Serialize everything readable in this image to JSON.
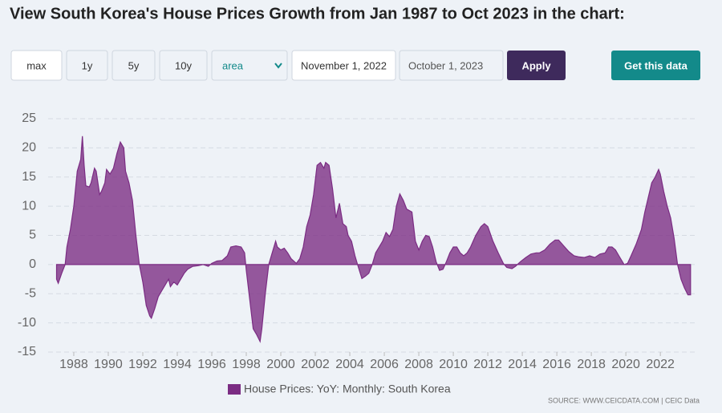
{
  "ui": {
    "buttons": [
      "max",
      "1y",
      "5y",
      "10y"
    ],
    "select": "area",
    "start_date": "November 1, 2022",
    "end_date": "October 1, 2023",
    "apply": "Apply",
    "get_data": "Get this data",
    "source": "SOURCE: WWW.CEICDATA.COM | CEIC Data"
  },
  "chart_data": {
    "type": "area",
    "title": "View South Korea's House Prices Growth from Jan 1987 to Oct 2023 in the chart:",
    "x": [
      1987.0,
      1987.1,
      1987.3,
      1987.5,
      1987.6,
      1987.8,
      1988.0,
      1988.2,
      1988.4,
      1988.5,
      1988.6,
      1988.7,
      1988.9,
      1989.0,
      1989.2,
      1989.3,
      1989.5,
      1989.6,
      1989.8,
      1989.9,
      1990.1,
      1990.3,
      1990.5,
      1990.7,
      1990.9,
      1991.0,
      1991.2,
      1991.4,
      1991.6,
      1991.8,
      1992.0,
      1992.2,
      1992.4,
      1992.5,
      1992.7,
      1992.9,
      1993.1,
      1993.3,
      1993.5,
      1993.6,
      1993.8,
      1994.0,
      1994.2,
      1994.4,
      1994.6,
      1994.9,
      1995.2,
      1995.5,
      1995.8,
      1996.0,
      1996.3,
      1996.6,
      1996.9,
      1997.1,
      1997.4,
      1997.7,
      1997.9,
      1998.0,
      1998.2,
      1998.4,
      1998.6,
      1998.8,
      1998.9,
      1999.1,
      1999.3,
      1999.5,
      1999.7,
      1999.8,
      2000.0,
      2000.2,
      2000.4,
      2000.6,
      2000.9,
      2001.1,
      2001.3,
      2001.5,
      2001.7,
      2001.9,
      2002.1,
      2002.3,
      2002.5,
      2002.6,
      2002.8,
      2003.0,
      2003.2,
      2003.4,
      2003.6,
      2003.8,
      2003.9,
      2004.1,
      2004.3,
      2004.5,
      2004.7,
      2004.9,
      2005.1,
      2005.3,
      2005.5,
      2005.7,
      2005.9,
      2006.1,
      2006.3,
      2006.5,
      2006.7,
      2006.9,
      2007.1,
      2007.3,
      2007.6,
      2007.8,
      2008.0,
      2008.2,
      2008.4,
      2008.6,
      2008.8,
      2009.0,
      2009.2,
      2009.4,
      2009.6,
      2009.8,
      2010.0,
      2010.2,
      2010.4,
      2010.6,
      2010.8,
      2011.0,
      2011.3,
      2011.6,
      2011.8,
      2012.0,
      2012.3,
      2012.6,
      2012.9,
      2013.1,
      2013.4,
      2013.6,
      2013.9,
      2014.2,
      2014.5,
      2014.8,
      2015.0,
      2015.3,
      2015.6,
      2015.9,
      2016.1,
      2016.4,
      2016.7,
      2017.0,
      2017.3,
      2017.6,
      2017.9,
      2018.2,
      2018.5,
      2018.8,
      2019.0,
      2019.2,
      2019.4,
      2019.6,
      2019.9,
      2020.1,
      2020.3,
      2020.6,
      2020.9,
      2021.1,
      2021.3,
      2021.5,
      2021.7,
      2021.9,
      2022.0,
      2022.2,
      2022.4,
      2022.6,
      2022.8,
      2023.0,
      2023.2,
      2023.4,
      2023.6,
      2023.75
    ],
    "series": [
      {
        "name": "House Prices: YoY: Monthly: South Korea",
        "color": "#7b2c83",
        "values": [
          -2.5,
          -3.2,
          -1.5,
          0,
          3,
          6,
          10,
          16,
          18,
          22,
          17,
          13.5,
          13.3,
          14,
          16.5,
          16,
          12,
          12.5,
          14,
          16.3,
          15.5,
          16.5,
          19,
          21,
          20,
          16,
          14,
          11,
          5,
          0,
          -3,
          -7,
          -8.8,
          -9.2,
          -7.5,
          -5.5,
          -4.5,
          -3.5,
          -2.5,
          -3.8,
          -3,
          -3.5,
          -2.5,
          -1.5,
          -0.8,
          -0.3,
          -0.2,
          0,
          -0.3,
          0.2,
          0.6,
          0.7,
          1.5,
          3,
          3.2,
          3,
          2,
          -1,
          -6,
          -11,
          -12,
          -13.2,
          -11,
          -5,
          0,
          2,
          4,
          3,
          2.5,
          2.8,
          2,
          1,
          0.2,
          1,
          3,
          6.5,
          8.5,
          12,
          17,
          17.5,
          16.5,
          17.5,
          17,
          13,
          8,
          10.5,
          7,
          6.5,
          5,
          4,
          1.5,
          -0.5,
          -2.4,
          -2,
          -1.5,
          0,
          2,
          3,
          4,
          5.5,
          4.8,
          6,
          10,
          12.1,
          11,
          9.5,
          9,
          4,
          2.5,
          4,
          5,
          4.8,
          3,
          0.5,
          -1,
          -0.8,
          0.5,
          2,
          3,
          3,
          2,
          1.5,
          2,
          3,
          5,
          6.5,
          7,
          6.5,
          4,
          2,
          0.2,
          -0.5,
          -0.7,
          -0.3,
          0.5,
          1.2,
          1.8,
          2,
          2,
          2.5,
          3.5,
          4.2,
          4.2,
          3.2,
          2.2,
          1.5,
          1.3,
          1.2,
          1.5,
          1.2,
          1.8,
          2,
          3,
          3,
          2.5,
          1.5,
          0,
          0.2,
          1.5,
          3.5,
          6,
          9,
          11.5,
          14,
          15,
          16.3,
          15.5,
          12.5,
          10,
          8,
          4.5,
          0,
          -2.5,
          -4,
          -5.2,
          -5.2
        ]
      }
    ],
    "xlim": [
      1986.7,
      2023.9
    ],
    "xticks": [
      1988,
      1990,
      1992,
      1994,
      1996,
      1998,
      2000,
      2002,
      2004,
      2006,
      2008,
      2010,
      2012,
      2014,
      2016,
      2018,
      2020,
      2022
    ],
    "ylim": [
      -15,
      25
    ],
    "yticks": [
      -15,
      -10,
      -5,
      0,
      5,
      10,
      15,
      20,
      25
    ],
    "grid": true
  }
}
